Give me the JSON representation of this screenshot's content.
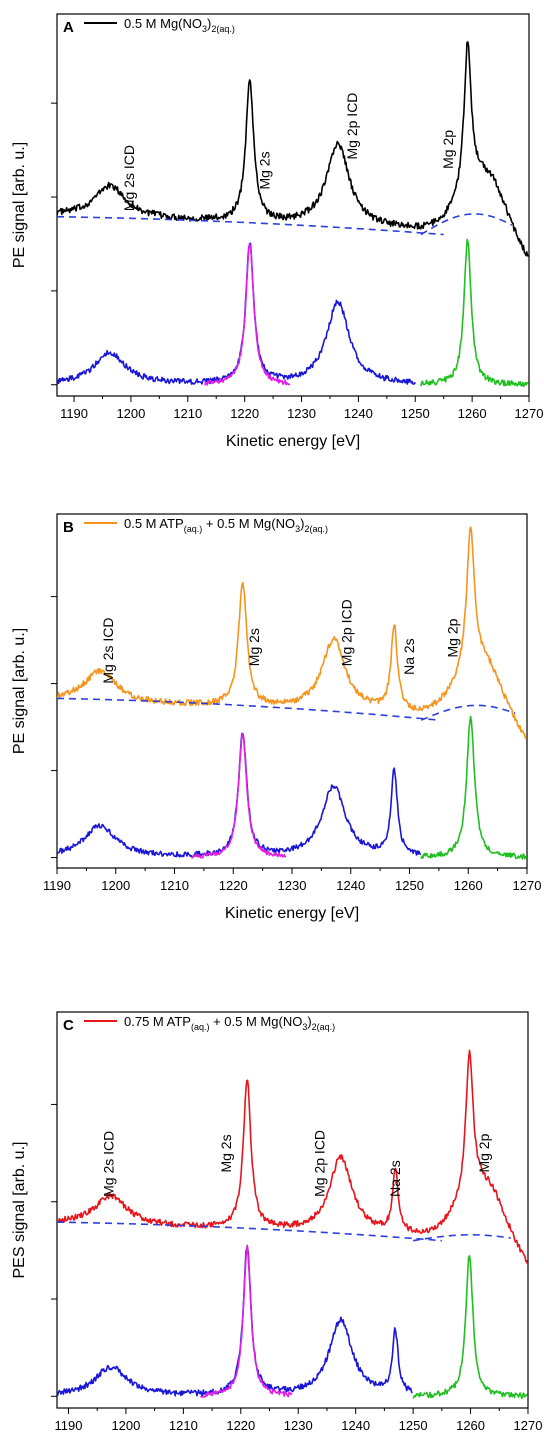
{
  "chart_data": [
    {
      "type": "line",
      "panel_label": "A",
      "legend": {
        "color": "#000000",
        "main": "0.5 M Mg(NO",
        "sub1": "3",
        "mid": ")",
        "sub2": "2(aq.)",
        "tail": ""
      },
      "xlabel": "Kinetic energy [eV]",
      "ylabel": "PE signal [arb. u.]",
      "xlim": [
        1187,
        1270
      ],
      "xticks": [
        1190,
        1200,
        1210,
        1220,
        1230,
        1240,
        1250,
        1260,
        1270
      ],
      "yticks": [
        0,
        1,
        2,
        3
      ],
      "ylim": [
        -0.12,
        3.95
      ],
      "grid": false,
      "annotations": [
        {
          "text": "Mg 2s ICD",
          "x": 1200.5,
          "y": 1.85
        },
        {
          "text": "Mg 2s",
          "x": 1224.4,
          "y": 2.08
        },
        {
          "text": "Mg 2p ICD",
          "x": 1239.8,
          "y": 2.4
        },
        {
          "text": "Mg 2p",
          "x": 1256.6,
          "y": 2.3
        }
      ],
      "series": [
        {
          "role": "raw",
          "color": "#000000",
          "x0": 1187,
          "x1": 1270,
          "offset": 1.6,
          "bg": 0.2,
          "bgtail": 0.6,
          "peaks": [
            [
              1196.3,
              0.34,
              3.3
            ],
            [
              1220.9,
              1.5,
              0.85
            ],
            [
              1236.4,
              0.88,
              2.4
            ],
            [
              1259.2,
              1.55,
              0.75
            ]
          ],
          "noise": 0.035
        },
        {
          "role": "fit",
          "color": "#1a16d8",
          "x0": 1187,
          "x1": 1250,
          "offset": 0.0,
          "bg": 0,
          "bgtail": 0,
          "peaks": [
            [
              1196.3,
              0.34,
              3.3
            ],
            [
              1220.9,
              1.5,
              0.85
            ],
            [
              1236.4,
              0.88,
              2.4
            ]
          ],
          "noise": 0.03
        },
        {
          "role": "fit",
          "color": "#e21ee6",
          "x0": 1213,
          "x1": 1228,
          "offset": 0.0,
          "bg": 0,
          "bgtail": 0,
          "peaks": [
            [
              1220.9,
              1.5,
              0.85
            ]
          ],
          "noise": 0.025
        },
        {
          "role": "fit",
          "color": "#20c020",
          "x0": 1251,
          "x1": 1270,
          "offset": 0.0,
          "bg": 0,
          "bgtail": 0,
          "peaks": [
            [
              1259.2,
              1.55,
              0.75
            ]
          ],
          "noise": 0.03
        }
      ],
      "baseline": {
        "x0": 1187,
        "x1": 1255,
        "y0": 1.79,
        "y1": 1.6,
        "color": "#2b3fe0"
      },
      "baseline_tail": {
        "x0": 1251,
        "x1": 1267,
        "ypeak": 1.82,
        "color": "#20c020"
      }
    },
    {
      "type": "line",
      "panel_label": "B",
      "legend": {
        "color": "#f7941d",
        "main": "0.5 M ATP",
        "sub1": "(aq.)",
        "mid": " + 0.5 M Mg(NO",
        "sub2": "3",
        "tail": ")",
        "sub3": "2(aq.)"
      },
      "xlabel": "Kinetic energy [eV]",
      "ylabel": "PE signal [arb. u.]",
      "xlim": [
        1190,
        1270
      ],
      "xticks": [
        1190,
        1200,
        1210,
        1220,
        1230,
        1240,
        1250,
        1260,
        1270
      ],
      "yticks": [
        0,
        1,
        2,
        3
      ],
      "ylim": [
        -0.12,
        3.95
      ],
      "grid": false,
      "annotations": [
        {
          "text": "Mg 2s ICD",
          "x": 1199.5,
          "y": 2.0
        },
        {
          "text": "Mg 2s",
          "x": 1224.4,
          "y": 2.2
        },
        {
          "text": "Mg 2p ICD",
          "x": 1240.1,
          "y": 2.2
        },
        {
          "text": "Na 2s",
          "x": 1250.8,
          "y": 2.1
        },
        {
          "text": "Mg 2p",
          "x": 1258.2,
          "y": 2.3
        }
      ],
      "series": [
        {
          "role": "raw",
          "color": "#f7941d",
          "x0": 1190,
          "x1": 1270,
          "offset": 1.6,
          "bg": 0.2,
          "bgtail": 0.6,
          "peaks": [
            [
              1197.3,
              0.36,
              3.3
            ],
            [
              1221.6,
              1.42,
              0.85
            ],
            [
              1237.1,
              0.82,
              2.4
            ],
            [
              1247.4,
              0.98,
              0.65
            ],
            [
              1260.4,
              1.62,
              0.8
            ]
          ],
          "noise": 0.035
        },
        {
          "role": "fit",
          "color": "#1a16d8",
          "x0": 1190,
          "x1": 1252,
          "offset": 0.0,
          "bg": 0,
          "bgtail": 0,
          "peaks": [
            [
              1197.3,
              0.36,
              3.3
            ],
            [
              1221.6,
              1.42,
              0.85
            ],
            [
              1237.1,
              0.82,
              2.4
            ],
            [
              1247.4,
              0.98,
              0.65
            ]
          ],
          "noise": 0.03
        },
        {
          "role": "fit",
          "color": "#e21ee6",
          "x0": 1213,
          "x1": 1229,
          "offset": 0.0,
          "bg": 0,
          "bgtail": 0,
          "peaks": [
            [
              1221.6,
              1.42,
              0.85
            ]
          ],
          "noise": 0.025
        },
        {
          "role": "fit",
          "color": "#20c020",
          "x0": 1252,
          "x1": 1270,
          "offset": 0.0,
          "bg": 0,
          "bgtail": 0,
          "peaks": [
            [
              1260.4,
              1.62,
              0.8
            ]
          ],
          "noise": 0.03
        }
      ],
      "baseline": {
        "x0": 1190,
        "x1": 1255,
        "y0": 1.83,
        "y1": 1.58,
        "color": "#2b3fe0"
      },
      "baseline_tail": {
        "x0": 1252,
        "x1": 1268,
        "ypeak": 1.75,
        "color": "#20c020"
      }
    },
    {
      "type": "line",
      "panel_label": "C",
      "legend": {
        "color": "#e8141c",
        "main": "0.75 M ATP",
        "sub1": "(aq.)",
        "mid": " + 0.5 M Mg(NO",
        "sub2": "3",
        "tail": ")",
        "sub3": "2(aq.)"
      },
      "xlabel": "Kinetic energy [eV]",
      "ylabel": "PES signal [arb. u.]",
      "xlim": [
        1188,
        1270
      ],
      "xticks": [
        1190,
        1200,
        1210,
        1220,
        1230,
        1240,
        1250,
        1260,
        1270
      ],
      "yticks": [
        0,
        1,
        2,
        3
      ],
      "ylim": [
        -0.12,
        3.95
      ],
      "grid": false,
      "annotations": [
        {
          "text": "Mg 2s ICD",
          "x": 1197.8,
          "y": 2.05
        },
        {
          "text": "Mg 2s",
          "x": 1218.3,
          "y": 2.3
        },
        {
          "text": "Mg 2p ICD",
          "x": 1234.6,
          "y": 2.05
        },
        {
          "text": "Na 2s",
          "x": 1247.7,
          "y": 2.05
        },
        {
          "text": "Mg 2p",
          "x": 1263.2,
          "y": 2.3
        }
      ],
      "series": [
        {
          "role": "raw",
          "color": "#e8141c",
          "x0": 1188,
          "x1": 1270,
          "offset": 1.6,
          "bg": 0.18,
          "bgtail": 0.55,
          "peaks": [
            [
              1197.4,
              0.3,
              3.3
            ],
            [
              1221.1,
              1.53,
              0.8
            ],
            [
              1237.4,
              0.78,
              2.4
            ],
            [
              1246.9,
              0.64,
              0.6
            ],
            [
              1259.8,
              1.45,
              0.75
            ]
          ],
          "noise": 0.03
        },
        {
          "role": "fit",
          "color": "#1a16d8",
          "x0": 1188,
          "x1": 1250,
          "offset": 0.0,
          "bg": 0,
          "bgtail": 0,
          "peaks": [
            [
              1197.4,
              0.3,
              3.3
            ],
            [
              1221.1,
              1.53,
              0.8
            ],
            [
              1237.4,
              0.78,
              2.4
            ],
            [
              1246.9,
              0.64,
              0.6
            ]
          ],
          "noise": 0.03
        },
        {
          "role": "fit",
          "color": "#e21ee6",
          "x0": 1213,
          "x1": 1229,
          "offset": 0.0,
          "bg": 0,
          "bgtail": 0,
          "peaks": [
            [
              1221.1,
              1.53,
              0.8
            ]
          ],
          "noise": 0.025
        },
        {
          "role": "fit",
          "color": "#20c020",
          "x0": 1250,
          "x1": 1270,
          "offset": 0.0,
          "bg": 0,
          "bgtail": 0,
          "peaks": [
            [
              1259.8,
              1.45,
              0.75
            ]
          ],
          "noise": 0.03
        }
      ],
      "baseline": {
        "x0": 1188,
        "x1": 1255,
        "y0": 1.79,
        "y1": 1.6,
        "color": "#2b3fe0"
      },
      "baseline_tail": {
        "x0": 1250,
        "x1": 1267,
        "ypeak": 1.66,
        "color": "#20c020"
      }
    }
  ]
}
